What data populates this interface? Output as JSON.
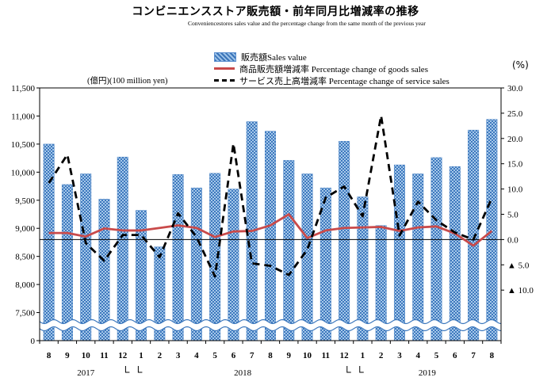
{
  "chart_data": {
    "type": "bar",
    "title": "コンビニエンスストア販売額・前年同月比増減率の推移",
    "subtitle": "Conveniencestores sales value and the percentage change from the same month of the previous year",
    "categories": [
      "8",
      "9",
      "10",
      "11",
      "12",
      "1",
      "2",
      "3",
      "4",
      "5",
      "6",
      "7",
      "8",
      "9",
      "10",
      "11",
      "12",
      "1",
      "2",
      "3",
      "4",
      "5",
      "6",
      "7",
      "8"
    ],
    "years": [
      {
        "label": "2017",
        "start": 0,
        "end": 4
      },
      {
        "label": "2018",
        "start": 5,
        "end": 16
      },
      {
        "label": "2019",
        "start": 17,
        "end": 24
      }
    ],
    "left_axis": {
      "unit_label": "(億円)(100 million yen)",
      "ylim": [
        7000,
        11500
      ],
      "ticks": [
        "0",
        "7,500",
        "8,000",
        "8,500",
        "9,000",
        "9,500",
        "10,000",
        "10,500",
        "11,000",
        "11,500"
      ],
      "tick_values": [
        7000,
        7500,
        8000,
        8500,
        9000,
        9500,
        10000,
        10500,
        11000,
        11500
      ]
    },
    "right_axis": {
      "unit_label": "(%)",
      "ylim": [
        -20,
        30
      ],
      "ticks": [
        "30.0",
        "25.0",
        "20.0",
        "15.0",
        "10.0",
        "5.0",
        "0.0",
        "▲ 5.0",
        "▲ 10.0"
      ],
      "tick_values": [
        30,
        25,
        20,
        15,
        10,
        5,
        0,
        -5,
        -10
      ]
    },
    "series": [
      {
        "name": "販売額Sales value",
        "type": "bar",
        "axis": "left",
        "values": [
          10500,
          9780,
          9970,
          9520,
          10270,
          9320,
          8670,
          9960,
          9720,
          9980,
          9700,
          10900,
          10730,
          10210,
          9970,
          9720,
          10550,
          9560,
          9050,
          10130,
          9970,
          10260,
          10100,
          10750,
          10940
        ]
      },
      {
        "name": "商品販売額増減率 Percentage change of goods sales",
        "type": "line",
        "axis": "right",
        "color": "#c94a4a",
        "values": [
          1.3,
          1.3,
          0.6,
          2.2,
          1.8,
          1.8,
          2.3,
          2.8,
          2.3,
          0.5,
          1.6,
          1.7,
          2.8,
          5.0,
          0.3,
          1.8,
          2.3,
          2.4,
          2.5,
          1.7,
          2.4,
          2.6,
          1.2,
          -1.2,
          1.7
        ]
      },
      {
        "name": "サービス売上高増減率 Percentage change of service sales",
        "type": "line",
        "axis": "right",
        "style": "dashed",
        "values": [
          11.2,
          16.8,
          -0.7,
          -4.2,
          0.9,
          0.9,
          -3.5,
          5.2,
          0.5,
          -7.3,
          19.0,
          -4.7,
          -5.2,
          -7.0,
          -2.0,
          8.3,
          10.5,
          4.6,
          24.5,
          0.8,
          7.5,
          3.8,
          1.4,
          0.0,
          8.2
        ]
      }
    ],
    "legend_position": "top-center",
    "grid": false
  }
}
